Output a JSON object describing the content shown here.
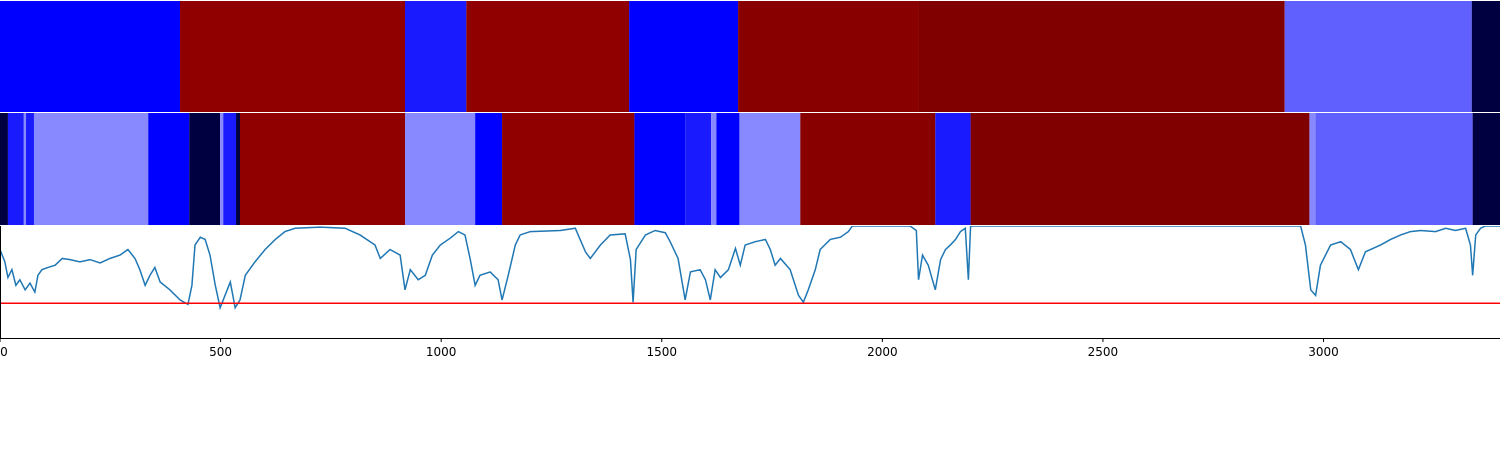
{
  "chart_data": [
    {
      "type": "segments",
      "xlim": [
        0,
        3400
      ],
      "segments": [
        {
          "start": 0,
          "end": 408,
          "color": "#0000ff"
        },
        {
          "start": 408,
          "end": 918,
          "color": "#900000"
        },
        {
          "start": 918,
          "end": 1057,
          "color": "#1a1aff"
        },
        {
          "start": 1057,
          "end": 1426,
          "color": "#900000"
        },
        {
          "start": 1426,
          "end": 1673,
          "color": "#0000ff"
        },
        {
          "start": 1673,
          "end": 2082,
          "color": "#880000"
        },
        {
          "start": 2082,
          "end": 2912,
          "color": "#800000"
        },
        {
          "start": 2912,
          "end": 3336,
          "color": "#6060ff"
        },
        {
          "start": 3336,
          "end": 3400,
          "color": "#000040"
        }
      ]
    },
    {
      "type": "segments",
      "xlim": [
        0,
        3400
      ],
      "segments": [
        {
          "start": 0,
          "end": 18,
          "color": "#000040"
        },
        {
          "start": 18,
          "end": 54,
          "color": "#1a1aff"
        },
        {
          "start": 54,
          "end": 59,
          "color": "#8888ff"
        },
        {
          "start": 59,
          "end": 77,
          "color": "#1a1aff"
        },
        {
          "start": 77,
          "end": 336,
          "color": "#8888ff"
        },
        {
          "start": 336,
          "end": 429,
          "color": "#0000ff"
        },
        {
          "start": 429,
          "end": 499,
          "color": "#000040"
        },
        {
          "start": 499,
          "end": 506,
          "color": "#8888ff"
        },
        {
          "start": 506,
          "end": 535,
          "color": "#1a1aff"
        },
        {
          "start": 535,
          "end": 544,
          "color": "#000040"
        },
        {
          "start": 544,
          "end": 918,
          "color": "#900000"
        },
        {
          "start": 918,
          "end": 1077,
          "color": "#8888ff"
        },
        {
          "start": 1077,
          "end": 1138,
          "color": "#0000ff"
        },
        {
          "start": 1138,
          "end": 1438,
          "color": "#900000"
        },
        {
          "start": 1438,
          "end": 1553,
          "color": "#0000ff"
        },
        {
          "start": 1553,
          "end": 1612,
          "color": "#1a1aff"
        },
        {
          "start": 1612,
          "end": 1624,
          "color": "#8888ff"
        },
        {
          "start": 1624,
          "end": 1676,
          "color": "#0000ff"
        },
        {
          "start": 1676,
          "end": 1814,
          "color": "#8888ff"
        },
        {
          "start": 1814,
          "end": 2120,
          "color": "#880000"
        },
        {
          "start": 2120,
          "end": 2200,
          "color": "#1a1aff"
        },
        {
          "start": 2200,
          "end": 2968,
          "color": "#800000"
        },
        {
          "start": 2968,
          "end": 2982,
          "color": "#8888ff"
        },
        {
          "start": 2982,
          "end": 3338,
          "color": "#6060ff"
        },
        {
          "start": 3338,
          "end": 3400,
          "color": "#000040"
        }
      ]
    },
    {
      "type": "line",
      "xlim": [
        0,
        3400
      ],
      "ylim": [
        0,
        1
      ],
      "xticks": [
        0,
        500,
        1000,
        1500,
        2000,
        2500,
        3000
      ],
      "color": "#1f77b4",
      "threshold": 0.31,
      "threshold_color": "#ff0000",
      "x": [
        0,
        11,
        18,
        27,
        36,
        45,
        57,
        68,
        79,
        86,
        95,
        109,
        125,
        141,
        159,
        181,
        204,
        227,
        249,
        272,
        290,
        306,
        317,
        329,
        340,
        351,
        363,
        385,
        408,
        426,
        435,
        442,
        454,
        465,
        476,
        488,
        499,
        510,
        522,
        533,
        544,
        556,
        578,
        601,
        624,
        646,
        669,
        726,
        782,
        816,
        850,
        862,
        884,
        907,
        918,
        930,
        948,
        964,
        980,
        998,
        1020,
        1039,
        1054,
        1066,
        1077,
        1088,
        1111,
        1129,
        1138,
        1152,
        1168,
        1179,
        1202,
        1270,
        1304,
        1327,
        1338,
        1361,
        1383,
        1417,
        1429,
        1435,
        1442,
        1463,
        1485,
        1508,
        1519,
        1537,
        1553,
        1565,
        1587,
        1599,
        1610,
        1621,
        1633,
        1651,
        1667,
        1678,
        1689,
        1712,
        1735,
        1746,
        1757,
        1769,
        1791,
        1810,
        1821,
        1832,
        1848,
        1859,
        1882,
        1905,
        1923,
        1932,
        2063,
        2077,
        2082,
        2091,
        2104,
        2120,
        2132,
        2143,
        2154,
        2166,
        2177,
        2188,
        2195,
        2200,
        2948,
        2959,
        2971,
        2982,
        2993,
        3016,
        3039,
        3061,
        3079,
        3095,
        3129,
        3152,
        3175,
        3197,
        3220,
        3254,
        3277,
        3299,
        3322,
        3333,
        3338,
        3345,
        3356,
        3367,
        3400
      ],
      "values": [
        0.79,
        0.68,
        0.54,
        0.61,
        0.47,
        0.52,
        0.43,
        0.49,
        0.41,
        0.56,
        0.61,
        0.63,
        0.65,
        0.71,
        0.7,
        0.68,
        0.7,
        0.67,
        0.71,
        0.74,
        0.79,
        0.71,
        0.61,
        0.47,
        0.56,
        0.63,
        0.5,
        0.43,
        0.34,
        0.3,
        0.47,
        0.83,
        0.9,
        0.88,
        0.74,
        0.47,
        0.27,
        0.38,
        0.5,
        0.27,
        0.34,
        0.56,
        0.68,
        0.79,
        0.88,
        0.95,
        0.98,
        0.99,
        0.98,
        0.92,
        0.83,
        0.71,
        0.79,
        0.74,
        0.43,
        0.61,
        0.52,
        0.56,
        0.74,
        0.83,
        0.89,
        0.95,
        0.92,
        0.7,
        0.47,
        0.56,
        0.59,
        0.52,
        0.34,
        0.56,
        0.83,
        0.92,
        0.95,
        0.96,
        0.98,
        0.77,
        0.71,
        0.83,
        0.92,
        0.93,
        0.7,
        0.32,
        0.79,
        0.92,
        0.96,
        0.94,
        0.86,
        0.71,
        0.34,
        0.59,
        0.61,
        0.52,
        0.34,
        0.61,
        0.54,
        0.61,
        0.8,
        0.65,
        0.83,
        0.86,
        0.88,
        0.79,
        0.65,
        0.71,
        0.61,
        0.38,
        0.32,
        0.43,
        0.61,
        0.79,
        0.88,
        0.9,
        0.95,
        1,
        1,
        0.96,
        0.52,
        0.74,
        0.65,
        0.43,
        0.7,
        0.79,
        0.83,
        0.88,
        0.95,
        0.98,
        0.52,
        1,
        1,
        0.83,
        0.43,
        0.38,
        0.65,
        0.83,
        0.86,
        0.79,
        0.61,
        0.77,
        0.83,
        0.88,
        0.92,
        0.95,
        0.96,
        0.95,
        0.98,
        0.96,
        0.98,
        0.83,
        0.56,
        0.92,
        0.98,
        1,
        1
      ]
    }
  ]
}
